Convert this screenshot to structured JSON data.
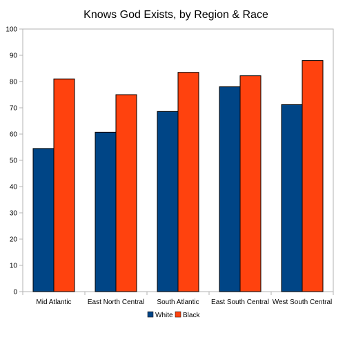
{
  "chart_data": {
    "type": "bar",
    "title": "Knows God Exists, by Region & Race",
    "xlabel": "",
    "ylabel": "",
    "ylim": [
      0,
      100
    ],
    "yticks": [
      "0",
      "10",
      "20",
      "30",
      "40",
      "50",
      "60",
      "70",
      "80",
      "90",
      "100"
    ],
    "categories": [
      "Mid Atlantic",
      "East North Central",
      "South Atlantic",
      "East South Central",
      "West South Central"
    ],
    "series": [
      {
        "name": "White",
        "color": "#004586",
        "values": [
          54.5,
          60.7,
          68.6,
          78.0,
          71.2
        ]
      },
      {
        "name": "Black",
        "color": "#ff420e",
        "values": [
          81.0,
          75.0,
          83.5,
          82.2,
          88.0
        ]
      }
    ],
    "grid": false,
    "legend": "bottom"
  }
}
